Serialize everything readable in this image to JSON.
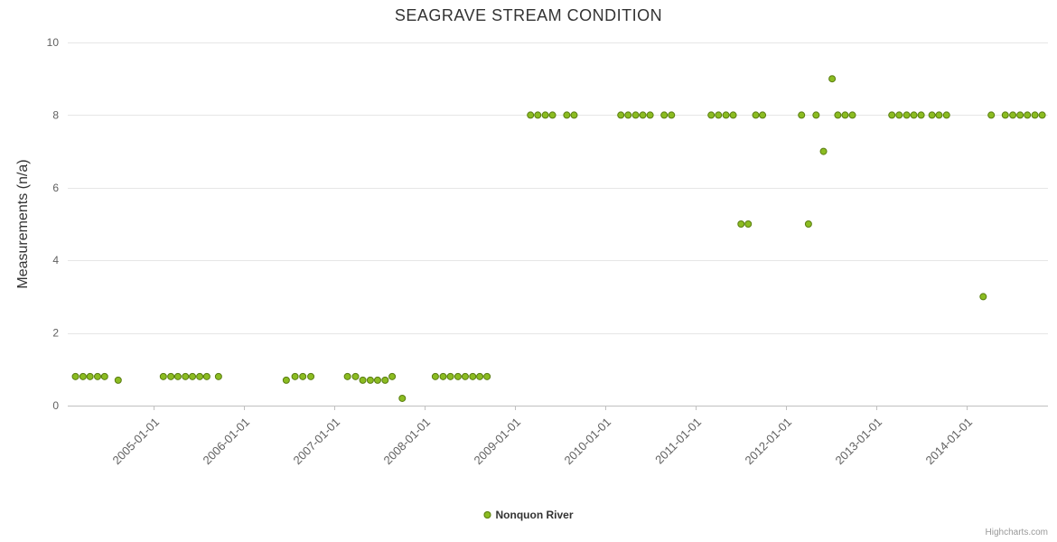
{
  "title": "SEAGRAVE STREAM CONDITION",
  "y_axis_title": "Measurements (n/a)",
  "legend": {
    "series_label": "Nonquon River",
    "position": "bottom-center"
  },
  "credits": "Highcharts.com",
  "colors": {
    "series": "#8bbc21",
    "series_edge": "#5a7d12",
    "grid": "#e6e6e6",
    "axis_line": "#c0c0c0",
    "tick_label": "#606060",
    "title": "#333333"
  },
  "chart_data": {
    "type": "scatter",
    "title": "SEAGRAVE STREAM CONDITION",
    "xlabel": "",
    "ylabel": "Measurements (n/a)",
    "legend": [
      "Nonquon River"
    ],
    "legend_position": "bottom-center",
    "grid": "horizontal-only",
    "ylim": [
      0,
      10
    ],
    "y_ticks": [
      0,
      2,
      4,
      6,
      8,
      10
    ],
    "x_ticks": [
      "2005-01-01",
      "2006-01-01",
      "2007-01-01",
      "2008-01-01",
      "2009-01-01",
      "2010-01-01",
      "2011-01-01",
      "2012-01-01",
      "2013-01-01",
      "2014-01-01"
    ],
    "xlim_yearfrac": [
      2004.05,
      2014.9
    ],
    "series": [
      {
        "name": "Nonquon River",
        "color": "#8bbc21",
        "points": [
          [
            "2004-02-20",
            0.8
          ],
          [
            "2004-03-20",
            0.8
          ],
          [
            "2004-04-18",
            0.8
          ],
          [
            "2004-05-18",
            0.8
          ],
          [
            "2004-06-16",
            0.8
          ],
          [
            "2004-08-10",
            0.7
          ],
          [
            "2005-02-10",
            0.8
          ],
          [
            "2005-03-10",
            0.8
          ],
          [
            "2005-04-08",
            0.8
          ],
          [
            "2005-05-08",
            0.8
          ],
          [
            "2005-06-06",
            0.8
          ],
          [
            "2005-07-05",
            0.8
          ],
          [
            "2005-08-03",
            0.8
          ],
          [
            "2005-09-20",
            0.8
          ],
          [
            "2006-06-20",
            0.7
          ],
          [
            "2006-07-25",
            0.8
          ],
          [
            "2006-08-26",
            0.8
          ],
          [
            "2006-09-28",
            0.8
          ],
          [
            "2007-02-24",
            0.8
          ],
          [
            "2007-03-26",
            0.8
          ],
          [
            "2007-04-25",
            0.7
          ],
          [
            "2007-05-25",
            0.7
          ],
          [
            "2007-06-24",
            0.7
          ],
          [
            "2007-07-24",
            0.7
          ],
          [
            "2007-08-22",
            0.8
          ],
          [
            "2007-10-02",
            0.2
          ],
          [
            "2008-02-14",
            0.8
          ],
          [
            "2008-03-15",
            0.8
          ],
          [
            "2008-04-14",
            0.8
          ],
          [
            "2008-05-14",
            0.8
          ],
          [
            "2008-06-13",
            0.8
          ],
          [
            "2008-07-13",
            0.8
          ],
          [
            "2008-08-11",
            0.8
          ],
          [
            "2008-09-10",
            0.8
          ],
          [
            "2009-03-03",
            8
          ],
          [
            "2009-04-02",
            8
          ],
          [
            "2009-05-02",
            8
          ],
          [
            "2009-05-31",
            8
          ],
          [
            "2009-07-28",
            8
          ],
          [
            "2009-08-27",
            8
          ],
          [
            "2010-03-03",
            8
          ],
          [
            "2010-04-02",
            8
          ],
          [
            "2010-05-02",
            8
          ],
          [
            "2010-05-31",
            8
          ],
          [
            "2010-06-30",
            8
          ],
          [
            "2010-08-26",
            8
          ],
          [
            "2010-09-25",
            8
          ],
          [
            "2011-03-03",
            8
          ],
          [
            "2011-04-02",
            8
          ],
          [
            "2011-05-02",
            8
          ],
          [
            "2011-05-31",
            8
          ],
          [
            "2011-07-02",
            5
          ],
          [
            "2011-07-31",
            5
          ],
          [
            "2011-08-31",
            8
          ],
          [
            "2011-09-28",
            8
          ],
          [
            "2012-03-03",
            8
          ],
          [
            "2012-03-31",
            5
          ],
          [
            "2012-05-01",
            8
          ],
          [
            "2012-05-31",
            7
          ],
          [
            "2012-07-05",
            9
          ],
          [
            "2012-07-28",
            8
          ],
          [
            "2012-08-27",
            8
          ],
          [
            "2012-09-26",
            8
          ],
          [
            "2013-03-03",
            8
          ],
          [
            "2013-04-02",
            8
          ],
          [
            "2013-05-02",
            8
          ],
          [
            "2013-05-31",
            8
          ],
          [
            "2013-06-30",
            8
          ],
          [
            "2013-08-13",
            8
          ],
          [
            "2013-09-11",
            8
          ],
          [
            "2013-10-11",
            8
          ],
          [
            "2014-03-07",
            3
          ],
          [
            "2014-04-09",
            8
          ],
          [
            "2014-06-05",
            8
          ],
          [
            "2014-07-05",
            8
          ],
          [
            "2014-08-04",
            8
          ],
          [
            "2014-09-03",
            8
          ],
          [
            "2014-10-03",
            8
          ],
          [
            "2014-11-02",
            8
          ]
        ]
      }
    ]
  }
}
